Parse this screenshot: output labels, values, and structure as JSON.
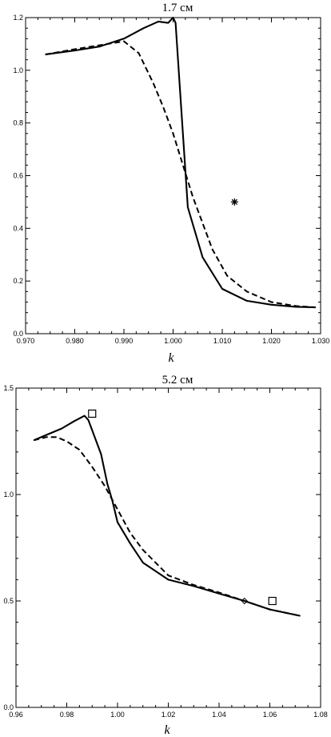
{
  "chart_data": [
    {
      "type": "line",
      "title": "1.7 см",
      "xlabel": "k",
      "ylabel": "",
      "xlim": [
        0.97,
        1.03
      ],
      "ylim": [
        0.0,
        1.2
      ],
      "xticks": [
        "0.970",
        "0.980",
        "0.990",
        "1.000",
        "1.010",
        "1.020",
        "1.030"
      ],
      "yticks": [
        "0.0",
        "0.2",
        "0.4",
        "0.6",
        "0.8",
        "1.0",
        "1.2"
      ],
      "series": [
        {
          "style": "solid",
          "x": [
            0.974,
            0.98,
            0.985,
            0.99,
            0.994,
            0.997,
            0.999,
            1.0,
            1.0005,
            1.0015,
            1.003,
            1.006,
            1.01,
            1.015,
            1.02,
            1.025,
            1.029
          ],
          "y": [
            1.06,
            1.075,
            1.09,
            1.12,
            1.16,
            1.185,
            1.18,
            1.2,
            1.18,
            0.9,
            0.48,
            0.29,
            0.17,
            0.125,
            0.11,
            0.102,
            0.1
          ]
        },
        {
          "style": "dashed",
          "x": [
            0.974,
            0.98,
            0.985,
            0.99,
            0.993,
            0.996,
            0.998,
            1.0,
            1.002,
            1.004,
            1.006,
            1.008,
            1.011,
            1.015,
            1.02,
            1.025,
            1.029
          ],
          "y": [
            1.06,
            1.08,
            1.095,
            1.11,
            1.065,
            0.95,
            0.86,
            0.76,
            0.64,
            0.52,
            0.42,
            0.32,
            0.22,
            0.16,
            0.12,
            0.105,
            0.1
          ]
        }
      ],
      "markers": [
        {
          "symbol": "asterisk",
          "x": 1.0125,
          "y": 0.5
        }
      ]
    },
    {
      "type": "line",
      "title": "5.2 см",
      "xlabel": "k",
      "ylabel": "",
      "xlim": [
        0.96,
        1.08
      ],
      "ylim": [
        0.0,
        1.5
      ],
      "xticks": [
        "0.96",
        "0.98",
        "1.00",
        "1.02",
        "1.04",
        "1.06",
        "1.08"
      ],
      "yticks": [
        "0.0",
        "0.5",
        "1.0",
        "1.5"
      ],
      "series": [
        {
          "style": "solid",
          "x": [
            0.967,
            0.972,
            0.978,
            0.983,
            0.987,
            0.9885,
            0.9935,
            0.996,
            0.998,
            1.0,
            1.005,
            1.01,
            1.02,
            1.03,
            1.04,
            1.05,
            1.06,
            1.072
          ],
          "y": [
            1.255,
            1.28,
            1.31,
            1.345,
            1.37,
            1.35,
            1.19,
            1.05,
            0.97,
            0.87,
            0.77,
            0.68,
            0.6,
            0.57,
            0.535,
            0.5,
            0.46,
            0.43
          ]
        },
        {
          "style": "dashed",
          "x": [
            0.967,
            0.972,
            0.976,
            0.98,
            0.985,
            0.99,
            0.995,
            1.0,
            1.005,
            1.01,
            1.02,
            1.03,
            1.04,
            1.05,
            1.06,
            1.072
          ],
          "y": [
            1.255,
            1.27,
            1.27,
            1.25,
            1.21,
            1.13,
            1.04,
            0.93,
            0.82,
            0.74,
            0.62,
            0.575,
            0.54,
            0.5,
            0.46,
            0.43
          ]
        }
      ],
      "markers": [
        {
          "symbol": "square",
          "x": 0.99,
          "y": 1.38
        },
        {
          "symbol": "square",
          "x": 1.061,
          "y": 0.5
        },
        {
          "symbol": "diamond",
          "x": 1.05,
          "y": 0.5
        }
      ]
    }
  ]
}
